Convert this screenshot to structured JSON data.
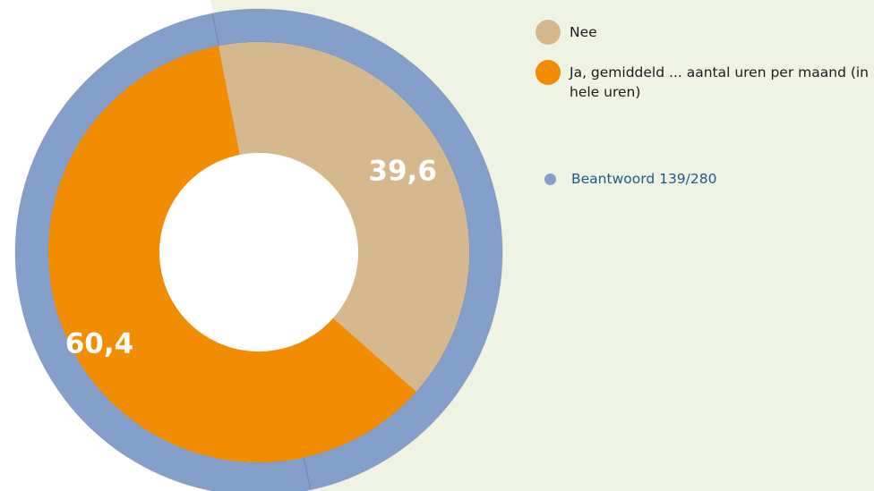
{
  "colors": {
    "panel_bg": "#eef3e4",
    "ring": "#859fcb",
    "nee": "#d5b88d",
    "ja": "#f28c00",
    "hole": "#ffffff",
    "label_text": "#ffffff"
  },
  "chart_data": {
    "type": "pie",
    "style": "donut",
    "title": "",
    "series": [
      {
        "name": "Nee",
        "value": 39.6,
        "label": "39,6",
        "color": "#d5b88d"
      },
      {
        "name": "Ja, gemiddeld ... aantal uren per maand (in hele uren)",
        "value": 60.4,
        "label": "60,4",
        "color": "#f28c00"
      }
    ],
    "outer_ring": {
      "name": "Beantwoord 139/280",
      "answered": 139,
      "total": 280,
      "color": "#859fcb"
    }
  },
  "legend": {
    "items": [
      {
        "label": "Nee",
        "color": "#d5b88d"
      },
      {
        "label": "Ja, gemiddeld ... aantal uren per maand (in hele uren)",
        "color": "#f28c00"
      }
    ],
    "answered_label": "Beantwoord 139/280",
    "answered_color": "#859fcb"
  }
}
